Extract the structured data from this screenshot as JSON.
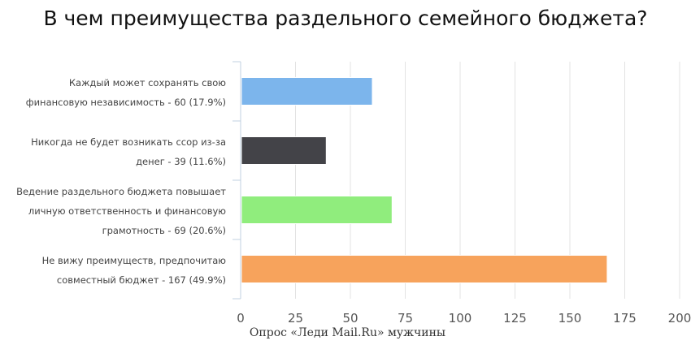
{
  "chart_data": {
    "type": "bar",
    "orientation": "horizontal",
    "title": "В чем преимущества раздельного семейного бюджета?",
    "categories": [
      "Каждый может сохранять свою финансовую независимость - 60 (17.9%)",
      "Никогда не будет возникать ссор из-за денег - 39 (11.6%)",
      "Ведение раздельного бюджета повышает личную ответственность и финансовую грамотность - 69 (20.6%)",
      "Не вижу преимуществ, предпочитаю совместный бюджет - 167 (49.9%)"
    ],
    "values": [
      60,
      39,
      69,
      167
    ],
    "colors": [
      "#7cb5ec",
      "#434348",
      "#90ed7d",
      "#f7a35c"
    ],
    "xlim": [
      0,
      200
    ],
    "xticks": [
      "0",
      "25",
      "50",
      "75",
      "100",
      "125",
      "150",
      "175",
      "200"
    ],
    "grid": true,
    "legend": "none"
  },
  "source": "Опрос «Леди Mail.Ru» мужчины"
}
